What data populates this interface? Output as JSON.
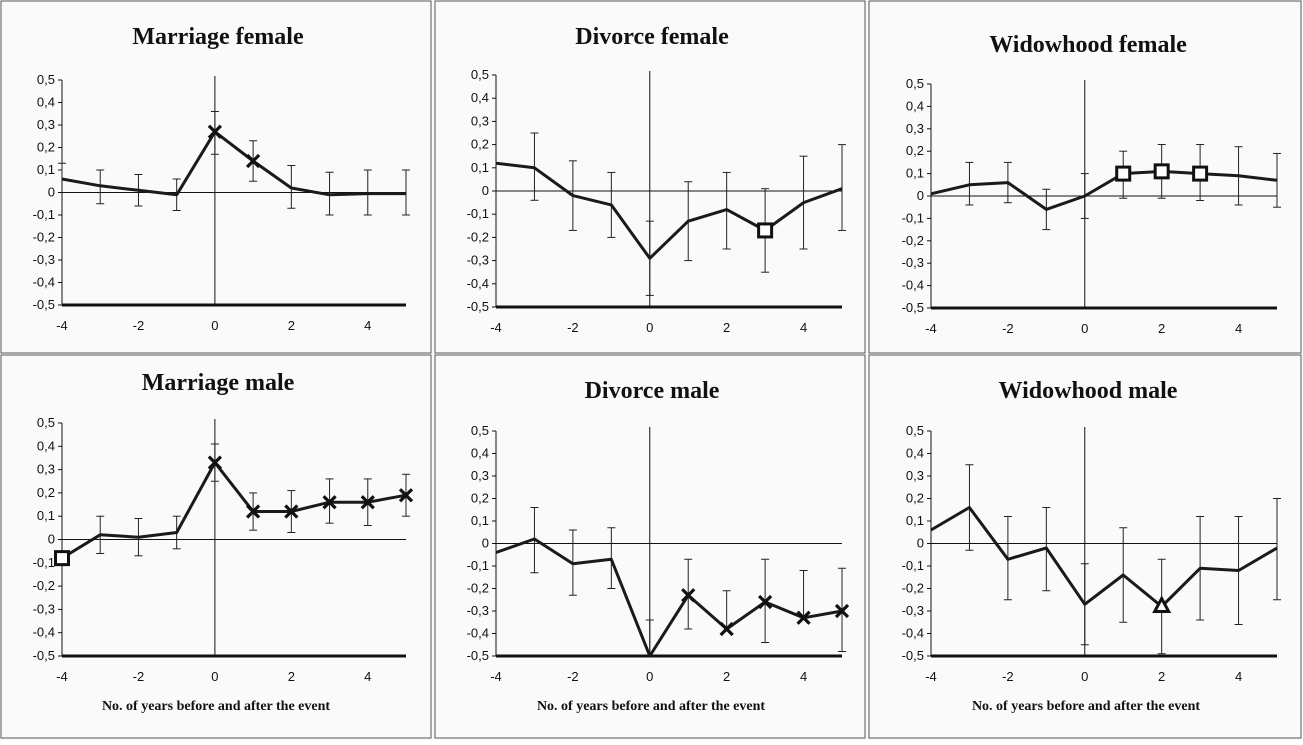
{
  "chart_data": [
    {
      "type": "line",
      "title": "Marriage female",
      "xlabel": "",
      "ylabel": "",
      "x_ticks": [
        "-4",
        "-2",
        "0",
        "2",
        "4"
      ],
      "y_ticks": [
        "0,5",
        "0,4",
        "0,3",
        "0,2",
        "0,1",
        "0",
        "-0,1",
        "-0,2",
        "-0,3",
        "-0,4",
        "-0,5"
      ],
      "xlim": [
        -4,
        5
      ],
      "ylim": [
        -0.5,
        0.5
      ],
      "vline_x": 0,
      "x": [
        -4,
        -3,
        -2,
        -1,
        0,
        1,
        2,
        3,
        4,
        5
      ],
      "y": [
        0.06,
        0.03,
        0.01,
        -0.01,
        0.27,
        0.14,
        0.02,
        -0.01,
        -0.005,
        -0.005
      ],
      "ci_low": [
        null,
        -0.05,
        -0.06,
        -0.08,
        0.17,
        0.05,
        -0.07,
        -0.1,
        -0.1,
        -0.1
      ],
      "ci_high": [
        0.13,
        0.1,
        0.08,
        0.06,
        0.36,
        0.23,
        0.12,
        0.09,
        0.1,
        0.1
      ],
      "markers": [
        {
          "x": 0,
          "y": 0.27,
          "symbol": "x"
        },
        {
          "x": 1,
          "y": 0.14,
          "symbol": "x"
        }
      ]
    },
    {
      "type": "line",
      "title": "Divorce female",
      "xlabel": "",
      "ylabel": "",
      "x_ticks": [
        "-4",
        "-2",
        "0",
        "2",
        "4"
      ],
      "y_ticks": [
        "0,5",
        "0,4",
        "0,3",
        "0,2",
        "0,1",
        "0",
        "-0,1",
        "-0,2",
        "-0,3",
        "-0,4",
        "-0,5"
      ],
      "xlim": [
        -4,
        5
      ],
      "ylim": [
        -0.5,
        0.5
      ],
      "vline_x": 0,
      "x": [
        -4,
        -3,
        -2,
        -1,
        0,
        1,
        2,
        3,
        4,
        5
      ],
      "y": [
        0.12,
        0.1,
        -0.02,
        -0.06,
        -0.29,
        -0.13,
        -0.08,
        -0.17,
        -0.05,
        0.01
      ],
      "ci_low": [
        null,
        -0.04,
        -0.17,
        -0.2,
        -0.45,
        -0.3,
        -0.25,
        -0.35,
        -0.25,
        -0.17
      ],
      "ci_high": [
        null,
        0.25,
        0.13,
        0.08,
        -0.13,
        0.04,
        0.08,
        0.01,
        0.15,
        0.2
      ],
      "markers": [
        {
          "x": 3,
          "y": -0.17,
          "symbol": "square"
        }
      ]
    },
    {
      "type": "line",
      "title": "Widowhood female",
      "xlabel": "",
      "ylabel": "",
      "x_ticks": [
        "-4",
        "-2",
        "0",
        "2",
        "4"
      ],
      "y_ticks": [
        "0,5",
        "0,4",
        "0,3",
        "0,2",
        "0,1",
        "0",
        "-0,1",
        "-0,2",
        "-0,3",
        "-0,4",
        "-0,5"
      ],
      "xlim": [
        -4,
        5
      ],
      "ylim": [
        -0.5,
        0.5
      ],
      "vline_x": 0,
      "x": [
        -4,
        -3,
        -2,
        -1,
        0,
        1,
        2,
        3,
        4,
        5
      ],
      "y": [
        0.01,
        0.05,
        0.06,
        -0.06,
        0.0,
        0.1,
        0.11,
        0.1,
        0.09,
        0.07
      ],
      "ci_low": [
        null,
        -0.04,
        -0.03,
        -0.15,
        -0.1,
        -0.01,
        -0.01,
        -0.02,
        -0.04,
        -0.05
      ],
      "ci_high": [
        null,
        0.15,
        0.15,
        0.03,
        0.1,
        0.2,
        0.23,
        0.23,
        0.22,
        0.19
      ],
      "markers": [
        {
          "x": 1,
          "y": 0.1,
          "symbol": "square"
        },
        {
          "x": 2,
          "y": 0.11,
          "symbol": "square"
        },
        {
          "x": 3,
          "y": 0.1,
          "symbol": "square"
        }
      ]
    },
    {
      "type": "line",
      "title": "Marriage male",
      "xlabel": "No. of years before and after the event",
      "ylabel": "",
      "x_ticks": [
        "-4",
        "-2",
        "0",
        "2",
        "4"
      ],
      "y_ticks": [
        "0,5",
        "0,4",
        "0,3",
        "0,2",
        "0,1",
        "0",
        "-0,1",
        "-0,2",
        "-0,3",
        "-0,4",
        "-0,5"
      ],
      "xlim": [
        -4,
        5
      ],
      "ylim": [
        -0.5,
        0.5
      ],
      "vline_x": 0,
      "x": [
        -4,
        -3,
        -2,
        -1,
        0,
        1,
        2,
        3,
        4,
        5
      ],
      "y": [
        -0.08,
        0.02,
        0.01,
        0.03,
        0.33,
        0.12,
        0.12,
        0.16,
        0.16,
        0.19
      ],
      "ci_low": [
        null,
        -0.06,
        -0.07,
        -0.04,
        0.25,
        0.04,
        0.03,
        0.07,
        0.06,
        0.1
      ],
      "ci_high": [
        null,
        0.1,
        0.09,
        0.1,
        0.41,
        0.2,
        0.21,
        0.26,
        0.26,
        0.28
      ],
      "markers": [
        {
          "x": -4,
          "y": -0.08,
          "symbol": "square"
        },
        {
          "x": 0,
          "y": 0.33,
          "symbol": "x"
        },
        {
          "x": 1,
          "y": 0.12,
          "symbol": "x"
        },
        {
          "x": 2,
          "y": 0.12,
          "symbol": "x"
        },
        {
          "x": 3,
          "y": 0.16,
          "symbol": "x"
        },
        {
          "x": 4,
          "y": 0.16,
          "symbol": "x"
        },
        {
          "x": 5,
          "y": 0.19,
          "symbol": "x"
        }
      ]
    },
    {
      "type": "line",
      "title": "Divorce male",
      "xlabel": "No. of years before and after the event",
      "ylabel": "",
      "x_ticks": [
        "-4",
        "-2",
        "0",
        "2",
        "4"
      ],
      "y_ticks": [
        "0,5",
        "0,4",
        "0,3",
        "0,2",
        "0,1",
        "0",
        "-0,1",
        "-0,2",
        "-0,3",
        "-0,4",
        "-0,5"
      ],
      "xlim": [
        -4,
        5
      ],
      "ylim": [
        -0.5,
        0.5
      ],
      "vline_x": 0,
      "x": [
        -4,
        -3,
        -2,
        -1,
        0,
        1,
        2,
        3,
        4,
        5
      ],
      "y": [
        -0.04,
        0.02,
        -0.09,
        -0.07,
        -0.5,
        -0.23,
        -0.38,
        -0.26,
        -0.33,
        -0.3
      ],
      "ci_low": [
        null,
        -0.13,
        -0.23,
        -0.2,
        null,
        -0.38,
        null,
        -0.44,
        null,
        -0.48
      ],
      "ci_high": [
        null,
        0.16,
        0.06,
        0.07,
        -0.34,
        -0.07,
        -0.21,
        -0.07,
        -0.12,
        -0.11
      ],
      "markers": [
        {
          "x": 1,
          "y": -0.23,
          "symbol": "x"
        },
        {
          "x": 2,
          "y": -0.38,
          "symbol": "x"
        },
        {
          "x": 3,
          "y": -0.26,
          "symbol": "x"
        },
        {
          "x": 4,
          "y": -0.33,
          "symbol": "x"
        },
        {
          "x": 5,
          "y": -0.3,
          "symbol": "x"
        }
      ]
    },
    {
      "type": "line",
      "title": "Widowhood male",
      "xlabel": "No. of years before and after the event",
      "ylabel": "",
      "x_ticks": [
        "-4",
        "-2",
        "0",
        "2",
        "4"
      ],
      "y_ticks": [
        "0,5",
        "0,4",
        "0,3",
        "0,2",
        "0,1",
        "0",
        "-0,1",
        "-0,2",
        "-0,3",
        "-0,4",
        "-0,5"
      ],
      "xlim": [
        -4,
        5
      ],
      "ylim": [
        -0.5,
        0.5
      ],
      "vline_x": 0,
      "x": [
        -4,
        -3,
        -2,
        -1,
        0,
        1,
        2,
        3,
        4,
        5
      ],
      "y": [
        0.06,
        0.16,
        -0.07,
        -0.02,
        -0.27,
        -0.14,
        -0.28,
        -0.11,
        -0.12,
        -0.02
      ],
      "ci_low": [
        null,
        -0.03,
        -0.25,
        -0.21,
        -0.45,
        -0.35,
        -0.49,
        -0.34,
        -0.36,
        -0.25
      ],
      "ci_high": [
        null,
        0.35,
        0.12,
        0.16,
        -0.09,
        0.07,
        -0.07,
        0.12,
        0.12,
        0.2
      ],
      "markers": [
        {
          "x": 2,
          "y": -0.28,
          "symbol": "triangle"
        }
      ]
    }
  ]
}
